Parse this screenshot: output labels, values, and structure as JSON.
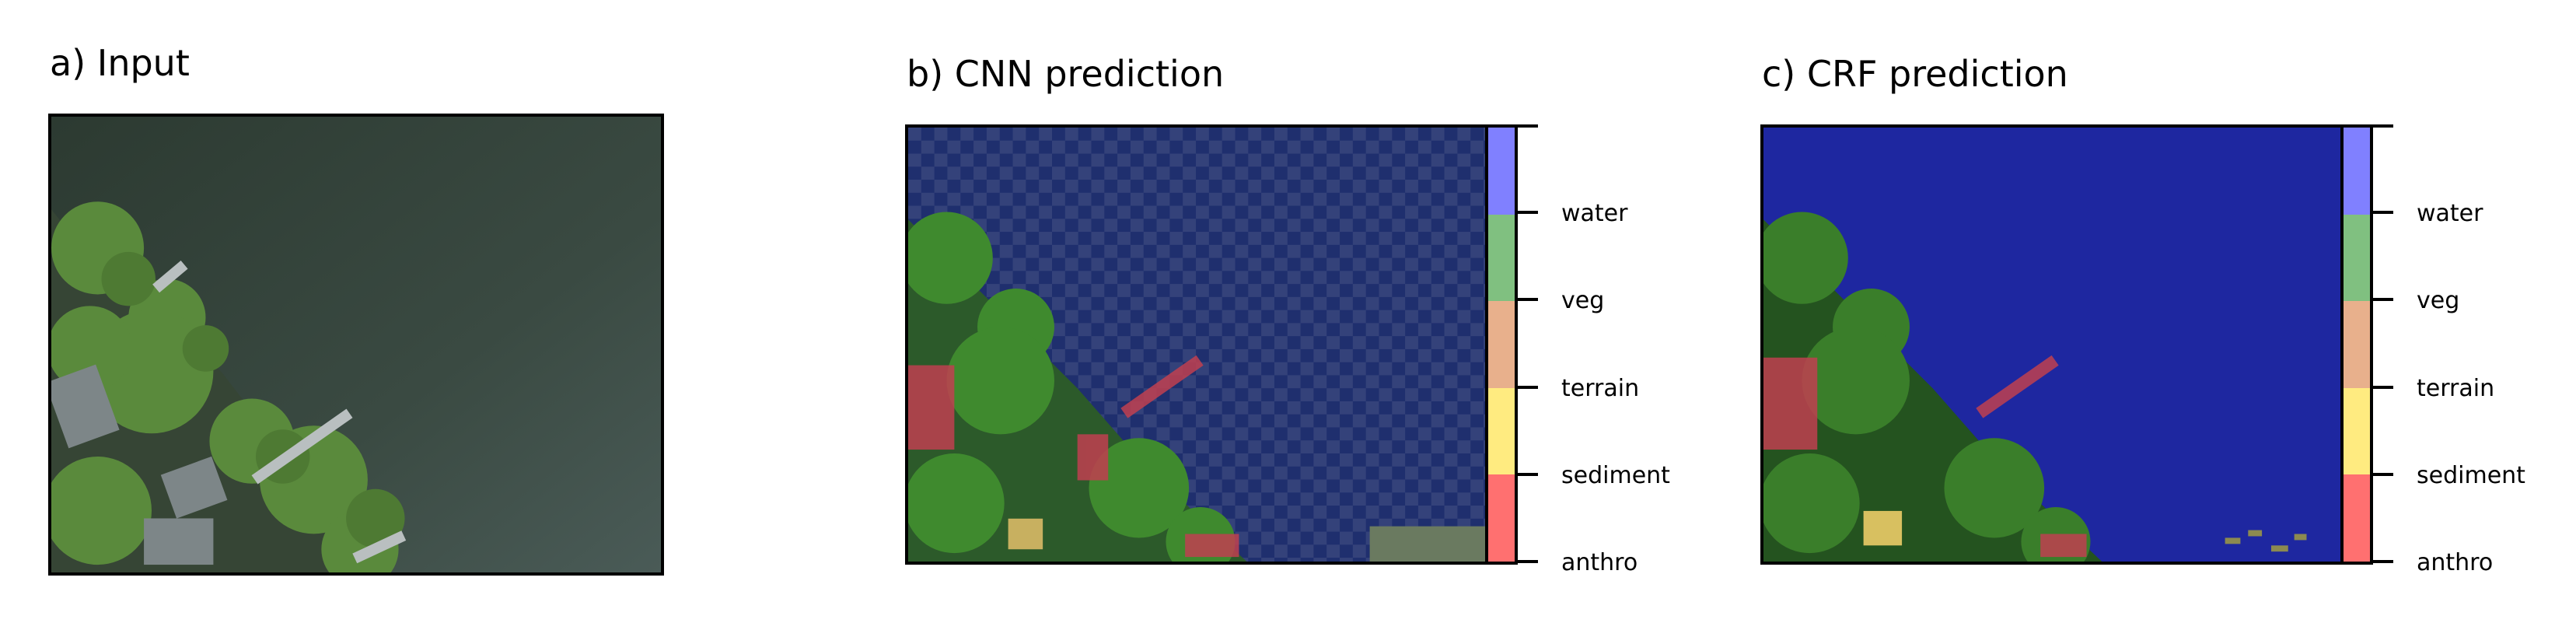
{
  "panels": {
    "input": {
      "title": "a) Input"
    },
    "cnn": {
      "title": "b) CNN prediction"
    },
    "crf": {
      "title": "c) CRF prediction"
    }
  },
  "classes": [
    {
      "label": "water",
      "color": "#8080ff"
    },
    {
      "label": "veg",
      "color": "#80c080"
    },
    {
      "label": "terrain",
      "color": "#e8b08c"
    },
    {
      "label": "sediment",
      "color": "#ffeb80"
    },
    {
      "label": "anthro",
      "color": "#ff7070"
    }
  ]
}
